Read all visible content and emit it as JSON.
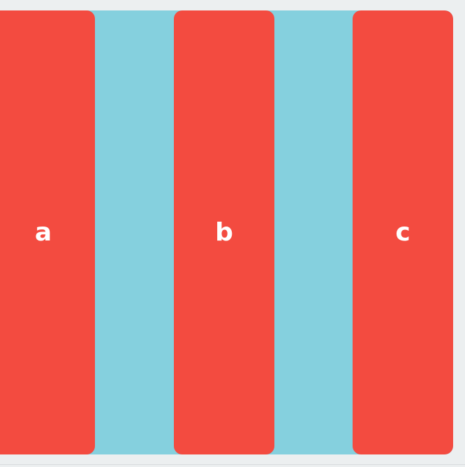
{
  "colors": {
    "page_background": "#eceff0",
    "container_background": "#85d0de",
    "box_background": "#f34b40",
    "box_text": "#ffffff"
  },
  "boxes": [
    {
      "label": "a"
    },
    {
      "label": "b"
    },
    {
      "label": "c"
    }
  ]
}
